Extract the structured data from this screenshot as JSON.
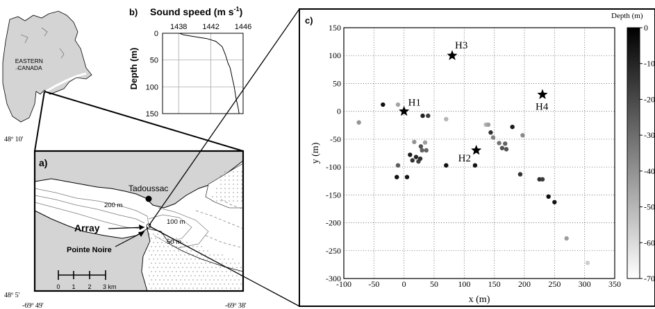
{
  "map_overview": {
    "region_label_1": "EASTERN",
    "region_label_2": "CANADA"
  },
  "panel_a": {
    "letter": "a)",
    "lat_top": "48º 10'",
    "lat_bottom": "48º 5'",
    "lon_left": "-69º 49'",
    "lon_right": "-69º 38'",
    "place_tadoussac": "Tadoussac",
    "place_pointe_noire": "Pointe Noire",
    "array_label": "Array",
    "contour_200": "200 m",
    "contour_100": "100 m",
    "contour_50": "50 m",
    "scale_ticks": [
      "0",
      "1",
      "2",
      "3 km"
    ]
  },
  "panel_b": {
    "letter": "b)",
    "title": "Sound speed (m s-1)",
    "title_main": "Sound speed (m s",
    "title_sup": "-1",
    "title_close": ")",
    "ylabel": "Depth (m)"
  },
  "panel_c": {
    "letter": "c)",
    "colorbar_title": "Depth (m)"
  },
  "colors": {
    "land": "#d4d4d4",
    "water": "#ffffff",
    "ink": "#000000",
    "grid": "#808080"
  },
  "chart_data": [
    {
      "type": "line",
      "panel": "b",
      "title": "Sound speed (m s-1)",
      "xlabel": "",
      "ylabel": "Depth (m)",
      "xlim": [
        1436,
        1446
      ],
      "ylim": [
        150,
        0
      ],
      "x_ticks": [
        1438,
        1442,
        1446
      ],
      "y_ticks": [
        0,
        50,
        100,
        150
      ],
      "grid": true,
      "series": [
        {
          "depth": [
            0,
            3,
            6,
            10,
            15,
            25,
            40,
            55,
            65,
            80,
            100,
            120,
            140,
            150
          ],
          "speed": [
            1438.1,
            1438.6,
            1439.8,
            1441.5,
            1442.6,
            1443.4,
            1443.8,
            1444.1,
            1444.4,
            1444.6,
            1444.9,
            1445.1,
            1445.4,
            1445.5
          ]
        }
      ]
    },
    {
      "type": "scatter",
      "panel": "c",
      "xlabel": "x (m)",
      "ylabel": "y (m)",
      "xlim": [
        -100,
        350
      ],
      "ylim": [
        -300,
        150
      ],
      "x_ticks": [
        -100,
        -50,
        0,
        50,
        100,
        150,
        200,
        250,
        300,
        350
      ],
      "y_ticks": [
        -300,
        -250,
        -200,
        -150,
        -100,
        -50,
        0,
        50,
        100,
        150
      ],
      "grid": true,
      "colorbar": {
        "label": "Depth (m)",
        "range": [
          0,
          -70
        ],
        "ticks": [
          "0",
          "-10",
          "-20",
          "-30",
          "-40",
          "-50",
          "-60",
          "-70"
        ],
        "colormap": "gray"
      },
      "hydrophones": [
        {
          "name": "H1",
          "x": 0,
          "y": 0
        },
        {
          "name": "H2",
          "x": 120,
          "y": -70
        },
        {
          "name": "H3",
          "x": 80,
          "y": 100
        },
        {
          "name": "H4",
          "x": 230,
          "y": 30
        }
      ],
      "points": [
        {
          "x": -75,
          "y": -20,
          "depth": -45
        },
        {
          "x": -35,
          "y": 12,
          "depth": -5
        },
        {
          "x": -10,
          "y": 12,
          "depth": -50
        },
        {
          "x": -10,
          "y": -97,
          "depth": -28
        },
        {
          "x": -12,
          "y": -118,
          "depth": -5
        },
        {
          "x": 5,
          "y": -118,
          "depth": -6
        },
        {
          "x": 10,
          "y": -78,
          "depth": -8
        },
        {
          "x": 14,
          "y": -88,
          "depth": -15
        },
        {
          "x": 17,
          "y": -55,
          "depth": -45
        },
        {
          "x": 20,
          "y": -82,
          "depth": -12
        },
        {
          "x": 24,
          "y": -90,
          "depth": -20
        },
        {
          "x": 27,
          "y": -85,
          "depth": -15
        },
        {
          "x": 28,
          "y": -63,
          "depth": -25
        },
        {
          "x": 30,
          "y": -70,
          "depth": -30
        },
        {
          "x": 31,
          "y": -8,
          "depth": -10
        },
        {
          "x": 35,
          "y": -56,
          "depth": -48
        },
        {
          "x": 37,
          "y": -70,
          "depth": -30
        },
        {
          "x": 40,
          "y": -8,
          "depth": -18
        },
        {
          "x": 70,
          "y": -97,
          "depth": -5
        },
        {
          "x": 70,
          "y": -14,
          "depth": -55
        },
        {
          "x": 118,
          "y": -97,
          "depth": -6
        },
        {
          "x": 136,
          "y": -24,
          "depth": -55
        },
        {
          "x": 140,
          "y": -24,
          "depth": -48
        },
        {
          "x": 144,
          "y": -38,
          "depth": -15
        },
        {
          "x": 148,
          "y": -47,
          "depth": -40
        },
        {
          "x": 158,
          "y": -57,
          "depth": -35
        },
        {
          "x": 163,
          "y": -66,
          "depth": -25
        },
        {
          "x": 168,
          "y": -58,
          "depth": -30
        },
        {
          "x": 170,
          "y": -68,
          "depth": -25
        },
        {
          "x": 180,
          "y": -28,
          "depth": -8
        },
        {
          "x": 193,
          "y": -113,
          "depth": -15
        },
        {
          "x": 197,
          "y": -43,
          "depth": -42
        },
        {
          "x": 225,
          "y": -122,
          "depth": -15
        },
        {
          "x": 230,
          "y": -122,
          "depth": -18
        },
        {
          "x": 240,
          "y": -153,
          "depth": -5
        },
        {
          "x": 250,
          "y": -163,
          "depth": -6
        },
        {
          "x": 270,
          "y": -228,
          "depth": -48
        },
        {
          "x": 305,
          "y": -272,
          "depth": -62
        }
      ]
    }
  ]
}
